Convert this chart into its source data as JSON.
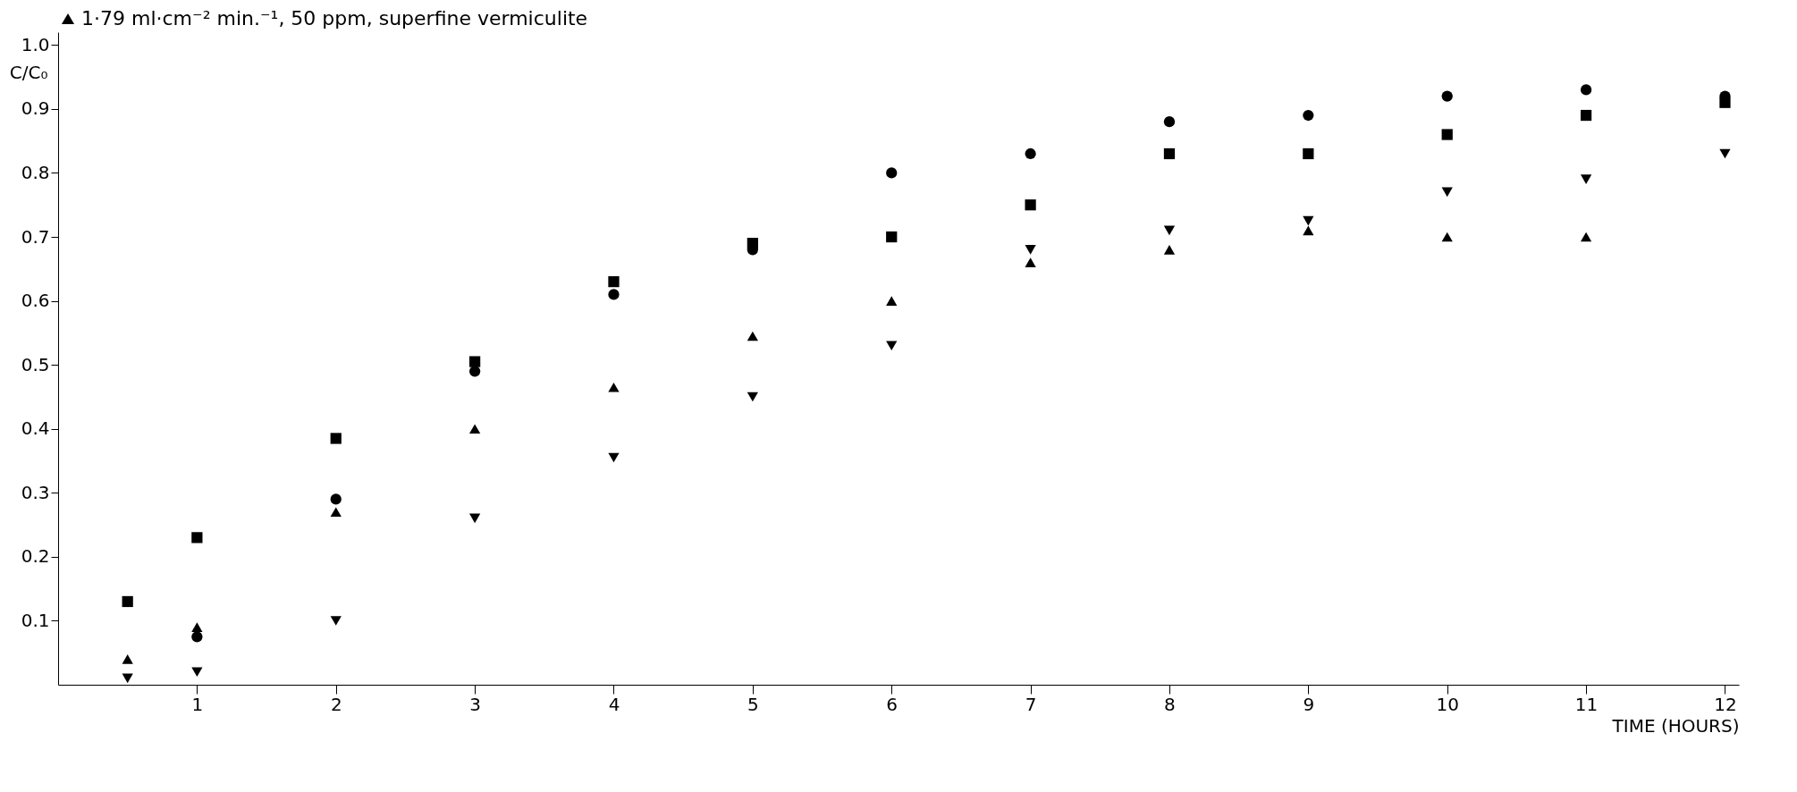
{
  "chart_data": {
    "type": "scatter",
    "xlabel": "TIME (HOURS)",
    "ylabel": "C/C₀",
    "xlim": [
      0,
      12.1
    ],
    "ylim": [
      0,
      1.02
    ],
    "xticks": [
      1,
      2,
      3,
      4,
      5,
      6,
      7,
      8,
      9,
      10,
      11,
      12
    ],
    "yticks": [
      0.1,
      0.2,
      0.3,
      0.4,
      0.5,
      0.6,
      0.7,
      0.8,
      0.9,
      {
        "value": 1.0,
        "label": "1.0"
      }
    ],
    "x": [
      0.5,
      1,
      2,
      3,
      4,
      5,
      6,
      7,
      8,
      9,
      10,
      11,
      12
    ],
    "grid": false,
    "legend": "top",
    "series": [
      {
        "color": "#000000",
        "marker": "circle",
        "values": [
          null,
          0.075,
          0.29,
          0.49,
          0.61,
          0.68,
          0.8,
          0.83,
          0.88,
          0.89,
          0.92,
          0.93,
          0.92
        ]
      },
      {
        "color": "#000000",
        "marker": "square",
        "values": [
          0.13,
          0.23,
          0.385,
          0.505,
          0.63,
          0.69,
          0.7,
          0.75,
          0.83,
          0.83,
          0.86,
          0.89,
          0.91
        ]
      },
      {
        "name": "1·79 ml·cm⁻² min.⁻¹, 50 ppm, superfine vermiculite",
        "color": "#000000",
        "marker": "triangle",
        "values": [
          0.04,
          0.09,
          0.27,
          0.4,
          0.465,
          0.545,
          0.6,
          0.66,
          0.68,
          0.71,
          0.7,
          0.7,
          null
        ]
      },
      {
        "color": "#000000",
        "marker": "triangle-down",
        "values": [
          0.01,
          0.02,
          0.1,
          0.26,
          0.355,
          0.45,
          0.53,
          0.68,
          0.71,
          0.725,
          0.77,
          0.79,
          0.83
        ]
      }
    ]
  }
}
